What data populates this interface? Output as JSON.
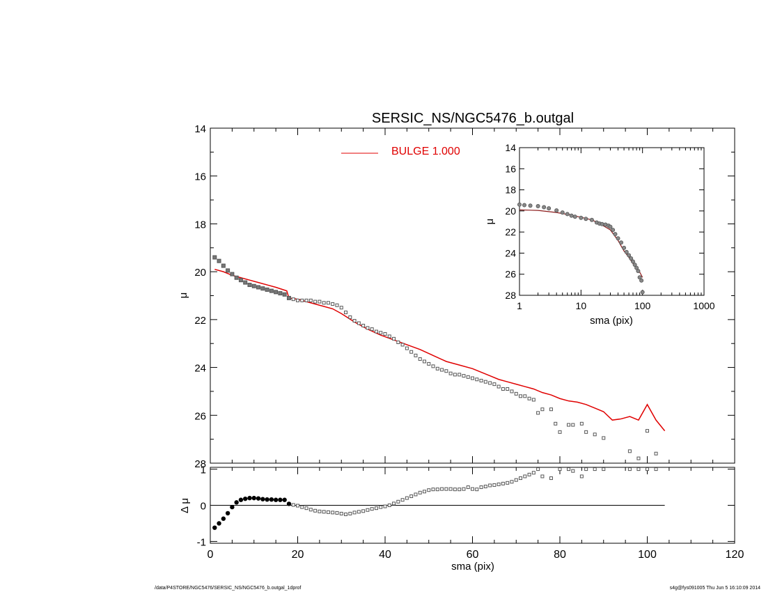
{
  "title": "SERSIC_NS/NGC5476_b.outgal",
  "footer": {
    "left": "/data/P4STORE/NGC5476/SERSIC_NS/NGC5476_b.outgal_1dprof",
    "right": "s4g@fys091005  Thu Jun  5 16:10:09 2014"
  },
  "colors": {
    "model": "#e00000",
    "data": "#555555",
    "axis": "#000000"
  },
  "chart_data": [
    {
      "type": "scatter",
      "panel": "main",
      "title": "SERSIC_NS/NGC5476_b.outgal",
      "xlabel": "",
      "ylabel": "μ",
      "xlim": [
        0,
        120
      ],
      "ylim": [
        28,
        14
      ],
      "x_ticks": [
        0,
        20,
        40,
        60,
        80,
        100,
        120
      ],
      "y_ticks": [
        14,
        16,
        18,
        20,
        22,
        24,
        26,
        28
      ],
      "legend": {
        "label": "BULGE  1.000",
        "placement": "top-center"
      },
      "series": [
        {
          "name": "BULGE  1.000",
          "kind": "line",
          "x": [
            1,
            3,
            5,
            7,
            9,
            11,
            13,
            15,
            17.5,
            18,
            20,
            22,
            25,
            28,
            30,
            33,
            36,
            39,
            42,
            45,
            48,
            51,
            54,
            57,
            60,
            62,
            64,
            66,
            68,
            70,
            72,
            74,
            76,
            78,
            80,
            82,
            84,
            86,
            88,
            90,
            92,
            94,
            96,
            98,
            100,
            102,
            104
          ],
          "y": [
            19.9,
            20.0,
            20.15,
            20.25,
            20.35,
            20.45,
            20.55,
            20.65,
            20.8,
            21.1,
            21.15,
            21.25,
            21.4,
            21.55,
            21.75,
            22.1,
            22.4,
            22.65,
            22.85,
            23.05,
            23.25,
            23.5,
            23.75,
            23.9,
            24.05,
            24.2,
            24.35,
            24.5,
            24.6,
            24.7,
            24.8,
            24.9,
            25.05,
            25.15,
            25.3,
            25.4,
            25.45,
            25.55,
            25.7,
            25.85,
            26.2,
            26.15,
            26.05,
            26.2,
            25.55,
            26.2,
            26.65
          ]
        },
        {
          "name": "",
          "kind": "points",
          "x": [
            1,
            2,
            3,
            4,
            5,
            6,
            7,
            8,
            9,
            10,
            11,
            12,
            13,
            14,
            15,
            16,
            17,
            18,
            19,
            20,
            21,
            22,
            23,
            24,
            25,
            26,
            27,
            28,
            29,
            30,
            31,
            32,
            33,
            34,
            35,
            36,
            37,
            38,
            39,
            40,
            41,
            42,
            43,
            44,
            45,
            46,
            47,
            48,
            49,
            50,
            51,
            52,
            53,
            54,
            55,
            56,
            57,
            58,
            59,
            60,
            61,
            62,
            63,
            64,
            65,
            66,
            67,
            68,
            69,
            70,
            71,
            72,
            73,
            74,
            75,
            76,
            78,
            79,
            80,
            82,
            83,
            85,
            86,
            88,
            90,
            96,
            98,
            100,
            102
          ],
          "y": [
            19.4,
            19.55,
            19.75,
            19.95,
            20.1,
            20.25,
            20.35,
            20.45,
            20.55,
            20.6,
            20.65,
            20.7,
            20.75,
            20.8,
            20.85,
            20.9,
            20.95,
            21.1,
            21.15,
            21.2,
            21.2,
            21.2,
            21.2,
            21.25,
            21.25,
            21.3,
            21.3,
            21.35,
            21.4,
            21.5,
            21.7,
            21.9,
            22.05,
            22.15,
            22.25,
            22.35,
            22.4,
            22.5,
            22.55,
            22.6,
            22.7,
            22.8,
            22.95,
            23.05,
            23.2,
            23.35,
            23.5,
            23.65,
            23.75,
            23.85,
            23.95,
            24.05,
            24.1,
            24.15,
            24.25,
            24.3,
            24.3,
            24.35,
            24.4,
            24.45,
            24.5,
            24.55,
            24.6,
            24.65,
            24.7,
            24.8,
            24.9,
            24.9,
            25.0,
            25.1,
            25.2,
            25.2,
            25.3,
            25.35,
            25.9,
            25.75,
            25.75,
            26.35,
            26.7,
            26.4,
            26.4,
            26.35,
            26.7,
            26.8,
            26.95,
            27.5,
            27.8,
            26.65,
            27.6
          ]
        }
      ]
    },
    {
      "type": "scatter",
      "panel": "inset",
      "xlabel": "sma (pix)",
      "ylabel": "μ",
      "xscale": "log",
      "xlim": [
        1,
        1000
      ],
      "ylim": [
        28,
        14
      ],
      "x_ticks": [
        1,
        10,
        100,
        1000
      ],
      "y_ticks": [
        14,
        16,
        18,
        20,
        22,
        24,
        26,
        28
      ],
      "series": [
        {
          "name": "",
          "kind": "line",
          "x": [
            1,
            2,
            4,
            7,
            10,
            15,
            20,
            30,
            40,
            50,
            60,
            70,
            80,
            90,
            100
          ],
          "y": [
            19.9,
            19.95,
            20.15,
            20.4,
            20.6,
            20.85,
            21.2,
            21.8,
            22.8,
            23.8,
            24.4,
            25.0,
            25.4,
            25.8,
            26.3
          ]
        },
        {
          "name": "",
          "kind": "points",
          "x": [
            1,
            1.2,
            1.5,
            2,
            2.5,
            3,
            4,
            5,
            6,
            7,
            8,
            10,
            12,
            15,
            18,
            20,
            22,
            25,
            28,
            30,
            33,
            36,
            40,
            45,
            50,
            55,
            60,
            65,
            70,
            75,
            80,
            85,
            90,
            96,
            100
          ],
          "y": [
            19.4,
            19.45,
            19.5,
            19.55,
            19.65,
            19.75,
            19.95,
            20.15,
            20.3,
            20.45,
            20.55,
            20.65,
            20.75,
            20.85,
            21.1,
            21.2,
            21.25,
            21.3,
            21.4,
            21.5,
            21.8,
            22.2,
            22.6,
            23.0,
            23.5,
            23.9,
            24.2,
            24.5,
            24.8,
            25.1,
            25.4,
            25.7,
            26.3,
            26.6,
            27.7
          ]
        }
      ]
    },
    {
      "type": "scatter",
      "panel": "residual",
      "xlabel": "sma (pix)",
      "ylabel": "Δ μ",
      "xlim": [
        0,
        120
      ],
      "ylim": [
        -1.05,
        1.05
      ],
      "x_ticks": [
        0,
        20,
        40,
        60,
        80,
        100,
        120
      ],
      "y_ticks": [
        -1,
        0,
        1
      ],
      "zero_line_xrange": [
        0,
        104
      ],
      "series": [
        {
          "name": "",
          "kind": "points",
          "x": [
            1,
            2,
            3,
            4,
            5,
            6,
            7,
            8,
            9,
            10,
            11,
            12,
            13,
            14,
            15,
            16,
            17,
            18,
            19,
            20,
            21,
            22,
            23,
            24,
            25,
            26,
            27,
            28,
            29,
            30,
            31,
            32,
            33,
            34,
            35,
            36,
            37,
            38,
            39,
            40,
            41,
            42,
            43,
            44,
            45,
            46,
            47,
            48,
            49,
            50,
            51,
            52,
            53,
            54,
            55,
            56,
            57,
            58,
            59,
            60,
            61,
            62,
            63,
            64,
            65,
            66,
            67,
            68,
            69,
            70,
            71,
            72,
            73,
            74,
            75,
            76,
            78,
            80,
            82,
            83,
            85,
            86,
            88,
            90,
            96,
            98,
            100,
            102
          ],
          "y": [
            -0.62,
            -0.5,
            -0.37,
            -0.22,
            -0.05,
            0.08,
            0.15,
            0.18,
            0.2,
            0.2,
            0.19,
            0.17,
            0.16,
            0.16,
            0.15,
            0.15,
            0.15,
            0.04,
            0.01,
            -0.01,
            -0.05,
            -0.08,
            -0.12,
            -0.15,
            -0.17,
            -0.18,
            -0.19,
            -0.2,
            -0.21,
            -0.23,
            -0.25,
            -0.23,
            -0.2,
            -0.18,
            -0.16,
            -0.13,
            -0.1,
            -0.08,
            -0.05,
            -0.03,
            0.0,
            0.05,
            0.1,
            0.15,
            0.2,
            0.25,
            0.3,
            0.35,
            0.38,
            0.42,
            0.44,
            0.44,
            0.45,
            0.45,
            0.45,
            0.44,
            0.44,
            0.45,
            0.5,
            0.45,
            0.44,
            0.5,
            0.52,
            0.55,
            0.56,
            0.58,
            0.6,
            0.62,
            0.65,
            0.7,
            0.75,
            0.8,
            0.85,
            0.9,
            1.0,
            0.8,
            0.75,
            1.0,
            1.0,
            0.95,
            0.8,
            1.0,
            1.0,
            1.0,
            1.0,
            1.0,
            1.0,
            1.0
          ]
        }
      ]
    }
  ]
}
